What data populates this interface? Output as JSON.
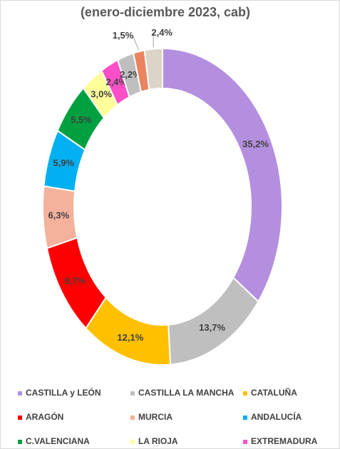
{
  "chart_data": {
    "type": "donut",
    "title": "(enero-diciembre 2023, cab)",
    "categories": [
      "CASTILLA y LEÓN",
      "CASTILLA LA MANCHA",
      "CATALUÑA",
      "ARAGÓN",
      "MURCIA",
      "ANDALUCÍA",
      "C.VALENCIANA",
      "LA RIOJA",
      "EXTREMADURA",
      null,
      null,
      null
    ],
    "values": [
      35.2,
      13.7,
      12.1,
      9.7,
      6.3,
      5.9,
      5.5,
      3.0,
      2.4,
      2.2,
      1.5,
      2.4
    ],
    "value_labels": [
      "35,2%",
      "13,7%",
      "12,1%",
      "9,7%",
      "6,3%",
      "5,9%",
      "5,5%",
      "3,0%",
      "2,4%",
      "2,2%",
      "1,5%",
      "2,4%"
    ],
    "colors": [
      "#b48fdf",
      "#bfbfbf",
      "#ffc000",
      "#ff0000",
      "#f4b19c",
      "#00b0f0",
      "#00a040",
      "#ffff99",
      "#ff4fc8",
      "#bfbfbf",
      "#ea8460",
      "#dcd4c6"
    ],
    "legend": "bottom"
  }
}
